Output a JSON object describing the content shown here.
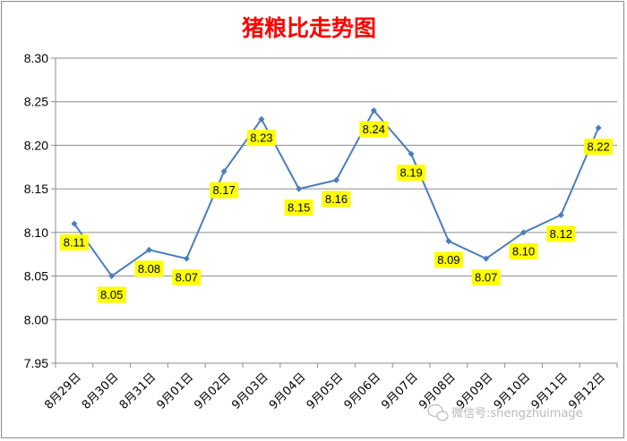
{
  "chart_data": {
    "type": "line",
    "title": "猪粮比走势图",
    "xlabel": "",
    "ylabel": "",
    "categories": [
      "8月29日",
      "8月30日",
      "8月31日",
      "9月01日",
      "9月02日",
      "9月03日",
      "9月04日",
      "9月05日",
      "9月06日",
      "9月07日",
      "9月08日",
      "9月09日",
      "9月10日",
      "9月11日",
      "9月12日"
    ],
    "series": [
      {
        "values": [
          8.11,
          8.05,
          8.08,
          8.07,
          8.17,
          8.23,
          8.15,
          8.16,
          8.24,
          8.19,
          8.09,
          8.07,
          8.1,
          8.12,
          8.22
        ],
        "labels": [
          "8.11",
          "8.05",
          "8.08",
          "8.07",
          "8.17",
          "8.23",
          "8.15",
          "8.16",
          "8.24",
          "8.19",
          "8.09",
          "8.07",
          "8.10",
          "8.12",
          "8.22"
        ],
        "color": "#4a7ebb"
      }
    ],
    "ylim": [
      7.95,
      8.3
    ],
    "yticks": [
      "7.95",
      "8.00",
      "8.05",
      "8.10",
      "8.15",
      "8.20",
      "8.25",
      "8.30"
    ],
    "grid": true,
    "legend": "none",
    "label_background": "#ffff00"
  },
  "colors": {
    "title": "#ff0000",
    "line": "#4a7ebb",
    "gridline": "#8c8c8c"
  },
  "watermark": {
    "text": "微信号:shengzhuimage",
    "icon": "wechat-icon"
  }
}
